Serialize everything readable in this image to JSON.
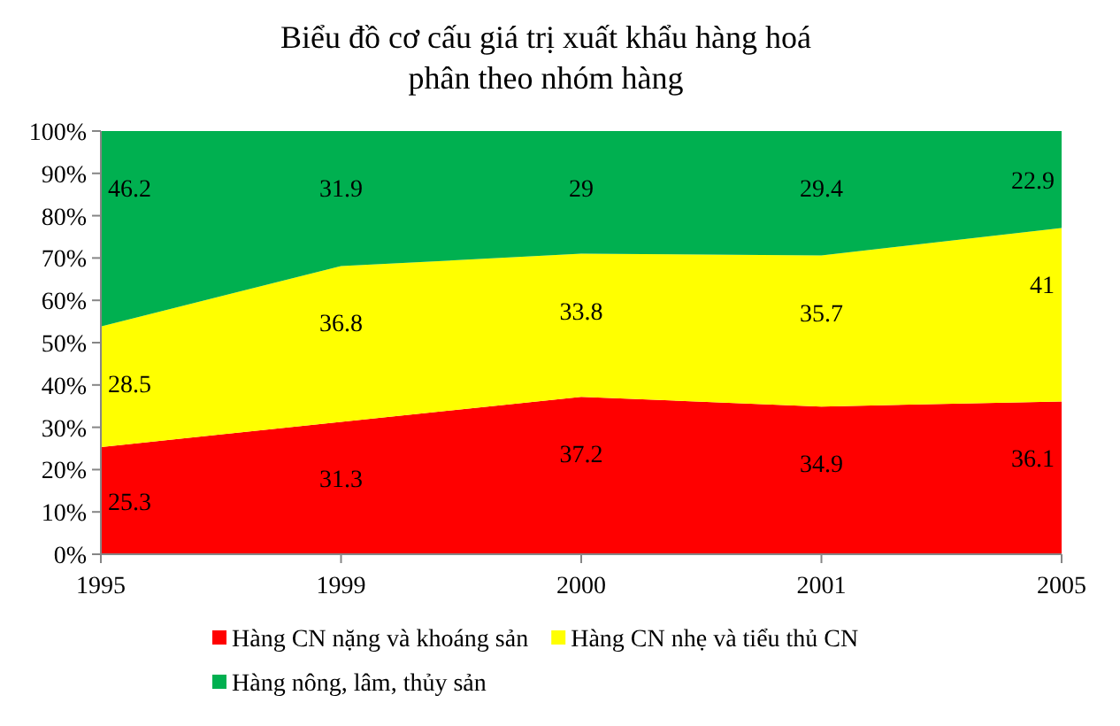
{
  "chart_data": {
    "type": "area",
    "title": "Biểu đồ cơ cấu giá trị xuất khẩu hàng hoá\nphân theo nhóm hàng",
    "categories": [
      "1995",
      "1999",
      "2000",
      "2001",
      "2005"
    ],
    "stacked": true,
    "data_labels": true,
    "legend": "bottom",
    "ylim": [
      0,
      100
    ],
    "yticks": [
      {
        "value": 0,
        "label": "0%"
      },
      {
        "value": 10,
        "label": "10%"
      },
      {
        "value": 20,
        "label": "20%"
      },
      {
        "value": 30,
        "label": "30%"
      },
      {
        "value": 40,
        "label": "40%"
      },
      {
        "value": 50,
        "label": "50%"
      },
      {
        "value": 60,
        "label": "60%"
      },
      {
        "value": 70,
        "label": "70%"
      },
      {
        "value": 80,
        "label": "80%"
      },
      {
        "value": 90,
        "label": "90%"
      },
      {
        "value": 100,
        "label": "100%"
      }
    ],
    "series": [
      {
        "name": "Hàng CN nặng và khoáng sản",
        "color": "#ff0000",
        "values": [
          25.3,
          31.3,
          37.2,
          34.9,
          36.1
        ]
      },
      {
        "name": "Hàng CN nhẹ và tiểu thủ CN",
        "color": "#ffff00",
        "values": [
          28.5,
          36.8,
          33.8,
          35.7,
          41
        ]
      },
      {
        "name": "Hàng nông, lâm, thủy sản",
        "color": "#00b050",
        "values": [
          46.2,
          31.9,
          29,
          29.4,
          22.9
        ]
      }
    ]
  }
}
